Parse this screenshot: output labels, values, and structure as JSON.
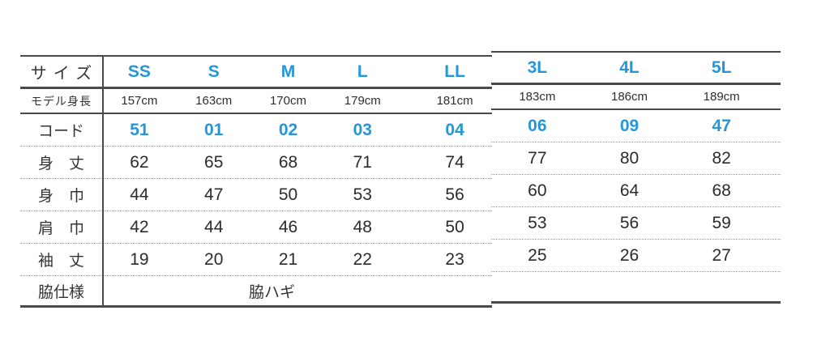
{
  "colors": {
    "accent": "#2397d8",
    "text": "#333333",
    "solid_line": "#4a4a4a",
    "dotted_line": "#979797"
  },
  "size_chart": {
    "labels": {
      "size": "サイズ",
      "model_height": "モデル身長",
      "code": "コード",
      "body_length": "身　丈",
      "body_width": "身　巾",
      "shoulder_width": "肩　巾",
      "sleeve_length": "袖　丈",
      "side_spec": "脇仕様"
    },
    "sizes": [
      "SS",
      "S",
      "M",
      "L",
      "LL",
      "3L",
      "4L",
      "5L"
    ],
    "model_heights": [
      "157cm",
      "163cm",
      "170cm",
      "179cm",
      "181cm",
      "183cm",
      "186cm",
      "189cm"
    ],
    "codes": [
      "51",
      "01",
      "02",
      "03",
      "04",
      "06",
      "09",
      "47"
    ],
    "body_length": [
      "62",
      "65",
      "68",
      "71",
      "74",
      "77",
      "80",
      "82"
    ],
    "body_width": [
      "44",
      "47",
      "50",
      "53",
      "56",
      "60",
      "64",
      "68"
    ],
    "shoulder_width": [
      "42",
      "44",
      "46",
      "48",
      "50",
      "53",
      "56",
      "59"
    ],
    "sleeve_length": [
      "19",
      "20",
      "21",
      "22",
      "23",
      "25",
      "26",
      "27"
    ],
    "side_spec_value": "脇ハギ"
  }
}
